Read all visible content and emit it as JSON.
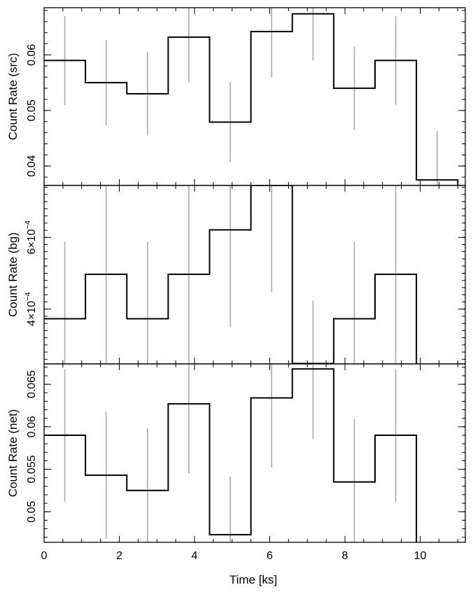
{
  "chart_data": [
    {
      "type": "line",
      "ylabel": "Count Rate (src)",
      "ylim": [
        0.0365,
        0.0685
      ],
      "yticks": [
        0.04,
        0.05,
        0.06
      ],
      "ytick_labels": [
        "0.04",
        "0.05",
        "0.06"
      ],
      "ytick_minor": 0.002,
      "series": [
        {
          "x_left": [
            0,
            1.1,
            2.2,
            3.3,
            4.4,
            5.5,
            6.6,
            7.7,
            8.8,
            9.9
          ],
          "x_right": [
            1.1,
            2.2,
            3.3,
            4.4,
            5.5,
            6.6,
            7.7,
            8.8,
            9.9,
            11.0
          ],
          "y": [
            0.059,
            0.055,
            0.053,
            0.0632,
            0.0479,
            0.0642,
            0.0674,
            0.054,
            0.059,
            0.0375
          ],
          "err": [
            0.008,
            0.0077,
            0.0075,
            0.0081,
            0.0072,
            0.0082,
            0.0084,
            0.0075,
            0.008,
            0.0088
          ]
        }
      ]
    },
    {
      "type": "line",
      "ylabel": "Count Rate (bg)",
      "ylim": [
        0.000247,
        0.000745
      ],
      "yticks": [
        0.0004,
        0.0006
      ],
      "ytick_labels": [
        {
          "mantissa": "4×10",
          "exponent": "−4"
        },
        {
          "mantissa": "6×10",
          "exponent": "−4"
        }
      ],
      "ytick_minor": 2e-05,
      "series": [
        {
          "x_left": [
            0,
            1.1,
            2.2,
            3.3,
            4.4,
            5.5,
            6.6,
            7.7,
            8.8
          ],
          "x_right": [
            1.1,
            2.2,
            3.3,
            4.4,
            5.5,
            6.6,
            7.7,
            8.8,
            9.9
          ],
          "y": [
            0.000373,
            0.000497,
            0.000373,
            0.000497,
            0.000621,
            0.000745,
            0.000248,
            0.000373,
            0.000497
          ],
          "err": [
            0.000215,
            0.000248,
            0.000215,
            0.000248,
            0.000272,
            0.000297,
            0.000176,
            0.000215,
            0.000248
          ]
        }
      ]
    },
    {
      "type": "line",
      "ylabel": "Count Rate (net)",
      "ylim": [
        0.0464,
        0.0674
      ],
      "yticks": [
        0.05,
        0.055,
        0.06,
        0.065
      ],
      "ytick_labels": [
        "0.05",
        "0.055",
        "0.06",
        "0.065"
      ],
      "ytick_minor": 0.001,
      "xlabel": "Time [ks]",
      "xlim": [
        0,
        11.2
      ],
      "xticks": [
        0,
        2,
        4,
        6,
        8,
        10
      ],
      "xtick_labels": [
        "0",
        "2",
        "4",
        "6",
        "8",
        "10"
      ],
      "xtick_minor": 0.5,
      "series": [
        {
          "x_left": [
            0,
            1.1,
            2.2,
            3.3,
            4.4,
            5.5,
            6.6,
            7.7,
            8.8
          ],
          "x_right": [
            1.1,
            2.2,
            3.3,
            4.4,
            5.5,
            6.6,
            7.7,
            8.8,
            9.9
          ],
          "y": [
            0.059,
            0.0543,
            0.0525,
            0.0627,
            0.0473,
            0.0634,
            0.0668,
            0.0535,
            0.059
          ],
          "err": [
            0.0078,
            0.0075,
            0.0073,
            0.0082,
            0.0068,
            0.0082,
            0.0083,
            0.0074,
            0.0078
          ]
        }
      ]
    }
  ]
}
